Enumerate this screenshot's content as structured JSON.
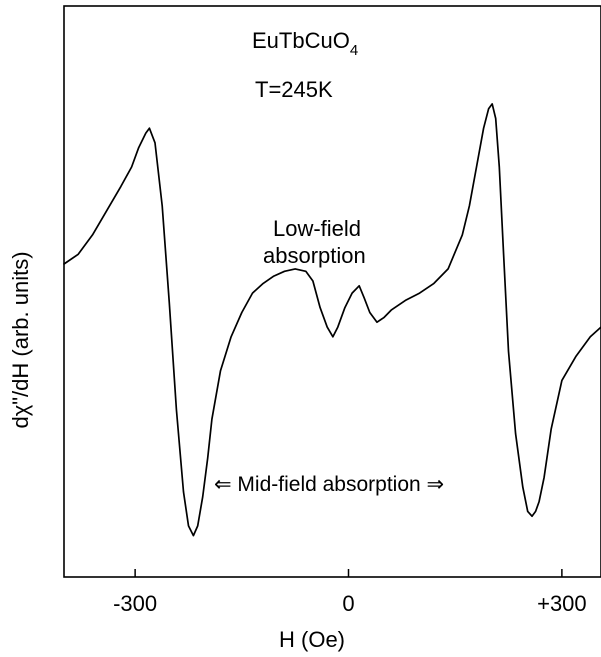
{
  "chart_data": {
    "type": "line",
    "title_main": "EuTbCuO",
    "title_sub": "4",
    "temperature": "T=245K",
    "xlabel": "H (Oe)",
    "ylabel": "dχ\"/dH (arb. units)",
    "xlim": [
      -400,
      355
    ],
    "ylim": [
      0,
      100
    ],
    "xticks": [
      {
        "value": -300,
        "label": "-300"
      },
      {
        "value": 0,
        "label": "0"
      },
      {
        "value": 300,
        "label": "+300"
      }
    ],
    "y_ticks_labeled": false,
    "grid": false,
    "annotations": {
      "low_field_line1": "Low-field",
      "low_field_line2": "absorption",
      "mid_field": "⇐ Mid-field absorption ⇒"
    },
    "series": [
      {
        "x": [
          -400,
          -380,
          -360,
          -340,
          -320,
          -305,
          -295,
          -285,
          -280,
          -272,
          -262,
          -252,
          -242,
          -232,
          -225,
          -218,
          -212,
          -205,
          -198,
          -192,
          -180,
          -165,
          -150,
          -135,
          -120,
          -105,
          -90,
          -75,
          -60,
          -50,
          -40,
          -30,
          -22,
          -15,
          -5,
          5,
          15,
          22,
          30,
          40,
          50,
          60,
          80,
          100,
          120,
          140,
          160,
          170,
          180,
          190,
          197,
          202,
          207,
          212,
          218,
          225,
          235,
          245,
          252,
          258,
          263,
          268,
          275,
          285,
          300,
          320,
          340,
          355
        ],
        "y": [
          60,
          62,
          66,
          71,
          76,
          80,
          84,
          87,
          88,
          85,
          72,
          52,
          30,
          13,
          6,
          4,
          6,
          12,
          20,
          28,
          38,
          45,
          50,
          54,
          56,
          57.5,
          58.5,
          59,
          58.5,
          56.5,
          51,
          47,
          45,
          47,
          51,
          54,
          55.5,
          53,
          50,
          48,
          49,
          50.5,
          52.5,
          54,
          56,
          59,
          66,
          72,
          80,
          88,
          92,
          93,
          90,
          80,
          62,
          42,
          25,
          14,
          9,
          8,
          9,
          11,
          16,
          26,
          36,
          41,
          45,
          47
        ]
      }
    ]
  }
}
